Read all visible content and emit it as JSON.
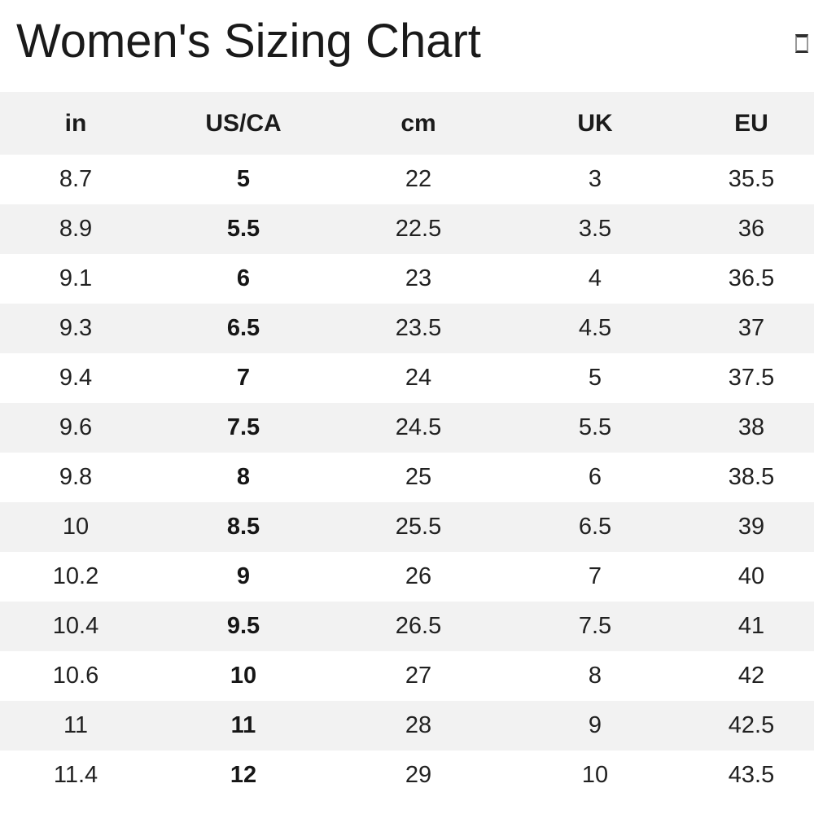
{
  "title": "Women's Sizing Chart",
  "header": {
    "action_icon": "empty-box-glyph"
  },
  "table": {
    "columns": [
      "in",
      "US/CA",
      "cm",
      "UK",
      "EU"
    ],
    "rows": [
      [
        "8.7",
        "5",
        "22",
        "3",
        "35.5"
      ],
      [
        "8.9",
        "5.5",
        "22.5",
        "3.5",
        "36"
      ],
      [
        "9.1",
        "6",
        "23",
        "4",
        "36.5"
      ],
      [
        "9.3",
        "6.5",
        "23.5",
        "4.5",
        "37"
      ],
      [
        "9.4",
        "7",
        "24",
        "5",
        "37.5"
      ],
      [
        "9.6",
        "7.5",
        "24.5",
        "5.5",
        "38"
      ],
      [
        "9.8",
        "8",
        "25",
        "6",
        "38.5"
      ],
      [
        "10",
        "8.5",
        "25.5",
        "6.5",
        "39"
      ],
      [
        "10.2",
        "9",
        "26",
        "7",
        "40"
      ],
      [
        "10.4",
        "9.5",
        "26.5",
        "7.5",
        "41"
      ],
      [
        "10.6",
        "10",
        "27",
        "8",
        "42"
      ],
      [
        "11",
        "11",
        "28",
        "9",
        "42.5"
      ],
      [
        "11.4",
        "12",
        "29",
        "10",
        "43.5"
      ]
    ]
  },
  "colors": {
    "stripe": "#f2f2f2",
    "text": "#212121",
    "title": "#1a1a1a"
  }
}
